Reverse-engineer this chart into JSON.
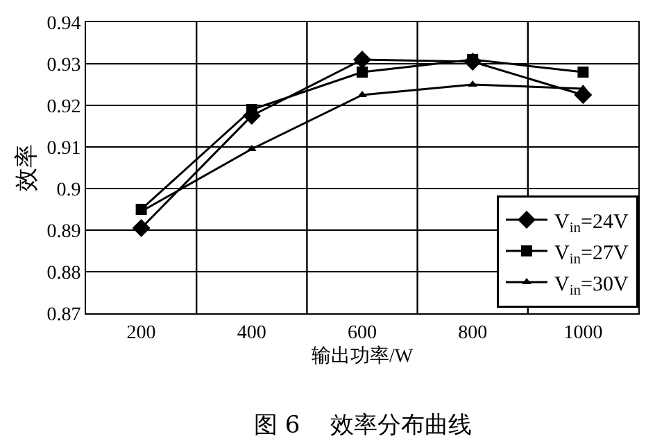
{
  "chart_data": {
    "type": "line",
    "title": "图 6    效率分布曲线",
    "xlabel": "输出功率/W",
    "ylabel": "效率",
    "categories": [
      "200",
      "400",
      "600",
      "800",
      "1000"
    ],
    "ylim": [
      0.87,
      0.94
    ],
    "yticks": [
      {
        "value": 0.87,
        "label": "0.87"
      },
      {
        "value": 0.88,
        "label": "0.88"
      },
      {
        "value": 0.89,
        "label": "0.89"
      },
      {
        "value": 0.9,
        "label": "0.9"
      },
      {
        "value": 0.91,
        "label": "0.91"
      },
      {
        "value": 0.92,
        "label": "0.92"
      },
      {
        "value": 0.93,
        "label": "0.93"
      },
      {
        "value": 0.94,
        "label": "0.94"
      }
    ],
    "grid": true,
    "legend": "bottom right",
    "series": [
      {
        "name": "V$_{in}$=24V",
        "color": "#000000",
        "marker": "diamond",
        "values": [
          0.8905,
          0.9175,
          0.931,
          0.9305,
          0.9225
        ]
      },
      {
        "name": "V$_{in}$=27V",
        "color": "#000000",
        "marker": "square",
        "values": [
          0.895,
          0.919,
          0.928,
          0.931,
          0.928
        ]
      },
      {
        "name": "V$_{in}$=30V",
        "color": "#000000",
        "marker": "triangle",
        "values": [
          0.8945,
          0.9095,
          0.9225,
          0.925,
          0.924
        ]
      }
    ]
  }
}
